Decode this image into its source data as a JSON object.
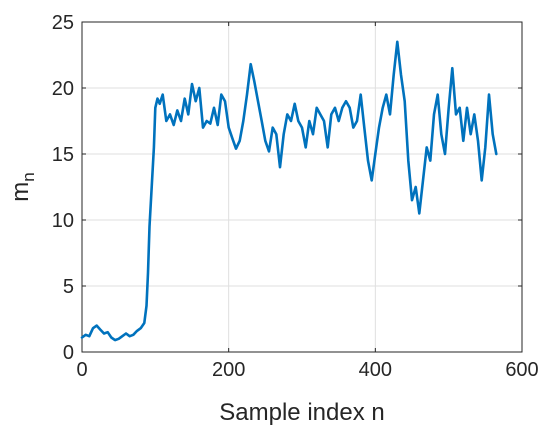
{
  "chart_data": {
    "type": "line",
    "xlabel": "Sample index n",
    "ylabel": "m",
    "ylabel_subscript": "n",
    "xlim": [
      0,
      600
    ],
    "ylim": [
      0,
      25
    ],
    "xticks": [
      0,
      200,
      400,
      600
    ],
    "yticks": [
      0,
      5,
      10,
      15,
      20,
      25
    ],
    "grid": true,
    "series": [
      {
        "color": "#0072BD",
        "x": [
          0,
          5,
          10,
          15,
          20,
          25,
          30,
          35,
          40,
          45,
          50,
          55,
          60,
          65,
          70,
          75,
          80,
          85,
          88,
          90,
          92,
          95,
          98,
          100,
          103,
          106,
          110,
          115,
          120,
          125,
          130,
          135,
          140,
          145,
          150,
          155,
          160,
          165,
          170,
          175,
          180,
          185,
          190,
          195,
          200,
          205,
          210,
          215,
          220,
          225,
          230,
          235,
          240,
          245,
          250,
          255,
          260,
          265,
          270,
          275,
          280,
          285,
          290,
          295,
          300,
          305,
          310,
          315,
          320,
          325,
          330,
          335,
          340,
          345,
          350,
          355,
          360,
          365,
          370,
          375,
          380,
          385,
          390,
          395,
          400,
          405,
          410,
          415,
          420,
          425,
          430,
          435,
          440,
          445,
          450,
          455,
          460,
          465,
          470,
          475,
          480,
          485,
          490,
          495,
          500,
          505,
          510,
          515,
          520,
          525,
          530,
          535,
          540,
          545,
          550,
          555,
          560,
          565
        ],
        "y": [
          1.1,
          1.3,
          1.2,
          1.8,
          2.0,
          1.7,
          1.4,
          1.5,
          1.1,
          0.9,
          1.0,
          1.2,
          1.4,
          1.2,
          1.3,
          1.6,
          1.8,
          2.2,
          3.5,
          6.0,
          9.5,
          12.5,
          15.5,
          18.5,
          19.2,
          18.8,
          19.5,
          17.5,
          18.0,
          17.2,
          18.3,
          17.5,
          19.2,
          18.0,
          20.3,
          19.0,
          20.0,
          17.0,
          17.5,
          17.3,
          18.5,
          17.2,
          19.5,
          19.0,
          17.0,
          16.2,
          15.4,
          16.0,
          17.5,
          19.5,
          21.8,
          20.5,
          19.0,
          17.5,
          16.0,
          15.2,
          17.0,
          16.5,
          14.0,
          16.5,
          18.0,
          17.5,
          18.8,
          17.5,
          17.0,
          15.5,
          17.5,
          16.5,
          18.5,
          18.0,
          17.5,
          15.5,
          18.0,
          18.5,
          17.5,
          18.5,
          19.0,
          18.5,
          17.0,
          17.5,
          19.5,
          17.0,
          14.5,
          13.0,
          15.0,
          17.0,
          18.5,
          19.5,
          18.0,
          21.0,
          23.5,
          21.0,
          19.0,
          14.5,
          11.5,
          12.5,
          10.5,
          13.0,
          15.5,
          14.5,
          18.0,
          19.5,
          16.5,
          15.0,
          18.5,
          21.5,
          18.0,
          18.5,
          16.0,
          18.5,
          16.5,
          18.0,
          16.0,
          13.0,
          15.5,
          19.5,
          16.5,
          15.0
        ]
      }
    ]
  }
}
